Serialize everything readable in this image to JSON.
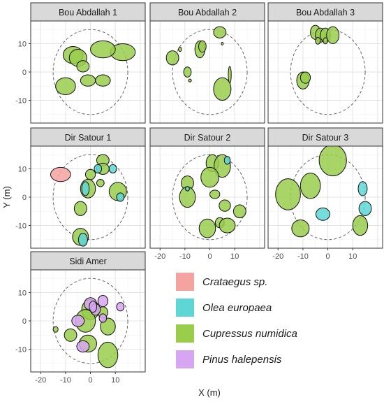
{
  "chart_data": {
    "type": "scatter",
    "xlabel": "X (m)",
    "ylabel": "Y (m)",
    "xlim": [
      -24,
      22
    ],
    "ylim": [
      -18,
      18
    ],
    "x_ticks": [
      -20,
      -10,
      0,
      10
    ],
    "y_ticks": [
      10,
      0,
      -10
    ],
    "grid": true,
    "plot_circle_radius": 15,
    "legend_position": "bottom-right",
    "species": [
      {
        "key": "crataegus",
        "name": "Crataegus sp.",
        "color": "#f4a3a0"
      },
      {
        "key": "olea",
        "name": "Olea europaea",
        "color": "#5ed6d6"
      },
      {
        "key": "cupressus",
        "name": "Cupressus numidica",
        "color": "#9acd4c"
      },
      {
        "key": "pinus",
        "name": "Pinus halepensis",
        "color": "#d7a6f2"
      }
    ],
    "panels": [
      {
        "title": "Bou Abdallah 1",
        "crowns": [
          {
            "s": "cupressus",
            "x": -7,
            "y": 6,
            "rx": 4,
            "ry": 3
          },
          {
            "s": "cupressus",
            "x": -5,
            "y": 5,
            "rx": 3.5,
            "ry": 3
          },
          {
            "s": "cupressus",
            "x": 13,
            "y": 7,
            "rx": 5,
            "ry": 3
          },
          {
            "s": "cupressus",
            "x": 5,
            "y": 8,
            "rx": 5,
            "ry": 3
          },
          {
            "s": "cupressus",
            "x": -3,
            "y": 2,
            "rx": 2.5,
            "ry": 2
          },
          {
            "s": "cupressus",
            "x": -10,
            "y": -5,
            "rx": 4,
            "ry": 3
          },
          {
            "s": "cupressus",
            "x": -1,
            "y": -3,
            "rx": 3,
            "ry": 2
          },
          {
            "s": "cupressus",
            "x": 5,
            "y": -3,
            "rx": 3,
            "ry": 2
          }
        ]
      },
      {
        "title": "Bou Abdallah 2",
        "crowns": [
          {
            "s": "cupressus",
            "x": 4,
            "y": 14,
            "rx": 2.5,
            "ry": 2
          },
          {
            "s": "cupressus",
            "x": -4,
            "y": 8,
            "rx": 2,
            "ry": 3
          },
          {
            "s": "cupressus",
            "x": -3,
            "y": 9,
            "rx": 1.5,
            "ry": 2
          },
          {
            "s": "cupressus",
            "x": -15,
            "y": 5,
            "rx": 2.5,
            "ry": 2.5
          },
          {
            "s": "cupressus",
            "x": -12,
            "y": 8,
            "rx": 0.6,
            "ry": 0.8
          },
          {
            "s": "cupressus",
            "x": -9,
            "y": 0,
            "rx": 1.5,
            "ry": 1.8
          },
          {
            "s": "cupressus",
            "x": -8,
            "y": -3,
            "rx": 0.6,
            "ry": 0.5
          },
          {
            "s": "cupressus",
            "x": 5,
            "y": 10,
            "rx": 0.4,
            "ry": 0.5
          },
          {
            "s": "cupressus",
            "x": 8,
            "y": -1,
            "rx": 0.6,
            "ry": 3
          },
          {
            "s": "cupressus",
            "x": 5,
            "y": -6,
            "rx": 3.5,
            "ry": 4
          }
        ]
      },
      {
        "title": "Bou Abdallah 3",
        "crowns": [
          {
            "s": "cupressus",
            "x": -5,
            "y": 14,
            "rx": 2,
            "ry": 2.5
          },
          {
            "s": "cupressus",
            "x": -3,
            "y": 13,
            "rx": 2,
            "ry": 2.5
          },
          {
            "s": "cupressus",
            "x": -1,
            "y": 13,
            "rx": 2,
            "ry": 2.5
          },
          {
            "s": "cupressus",
            "x": 2,
            "y": 13,
            "rx": 2.5,
            "ry": 3
          },
          {
            "s": "cupressus",
            "x": -4,
            "y": 11,
            "rx": 1,
            "ry": 1.2
          },
          {
            "s": "cupressus",
            "x": -1,
            "y": 11,
            "rx": 0.9,
            "ry": 1.1
          },
          {
            "s": "cupressus",
            "x": -10,
            "y": -3,
            "rx": 2.5,
            "ry": 3
          },
          {
            "s": "cupressus",
            "x": -9,
            "y": -2,
            "rx": 2,
            "ry": 2
          }
        ]
      },
      {
        "title": "Dir Satour 1",
        "crowns": [
          {
            "s": "crataegus",
            "x": -12,
            "y": 8,
            "rx": 4,
            "ry": 2.5
          },
          {
            "s": "cupressus",
            "x": 5,
            "y": 13,
            "rx": 2.5,
            "ry": 2
          },
          {
            "s": "cupressus",
            "x": 5,
            "y": 10,
            "rx": 2.5,
            "ry": 2
          },
          {
            "s": "olea",
            "x": 3,
            "y": 10,
            "rx": 1.5,
            "ry": 1.5
          },
          {
            "s": "olea",
            "x": 9,
            "y": 10,
            "rx": 1.5,
            "ry": 1.5
          },
          {
            "s": "cupressus",
            "x": 0,
            "y": 8,
            "rx": 2,
            "ry": 1.8
          },
          {
            "s": "cupressus",
            "x": 4,
            "y": 5,
            "rx": 1.5,
            "ry": 1.3
          },
          {
            "s": "cupressus",
            "x": -1,
            "y": 3,
            "rx": 3,
            "ry": 3.3
          },
          {
            "s": "olea",
            "x": -2,
            "y": 3,
            "rx": 1.5,
            "ry": 2.5
          },
          {
            "s": "cupressus",
            "x": 11,
            "y": 2,
            "rx": 3.5,
            "ry": 3.2
          },
          {
            "s": "olea",
            "x": 12,
            "y": 0,
            "rx": 1.5,
            "ry": 1.5
          },
          {
            "s": "cupressus",
            "x": -4,
            "y": -4,
            "rx": 2.5,
            "ry": 2.5
          },
          {
            "s": "cupressus",
            "x": -4,
            "y": -14,
            "rx": 3.2,
            "ry": 3
          },
          {
            "s": "olea",
            "x": -3,
            "y": -15,
            "rx": 1.8,
            "ry": 2.3
          }
        ]
      },
      {
        "title": "Dir Satour 2",
        "crowns": [
          {
            "s": "cupressus",
            "x": 1,
            "y": 12,
            "rx": 2.5,
            "ry": 3
          },
          {
            "s": "cupressus",
            "x": 5,
            "y": 11,
            "rx": 3.3,
            "ry": 4
          },
          {
            "s": "olea",
            "x": 7,
            "y": 13,
            "rx": 1.2,
            "ry": 1.4
          },
          {
            "s": "cupressus",
            "x": 0,
            "y": 7,
            "rx": 3.6,
            "ry": 3.5
          },
          {
            "s": "cupressus",
            "x": -9,
            "y": 5,
            "rx": 2.5,
            "ry": 2.5
          },
          {
            "s": "cupressus",
            "x": -9,
            "y": 0,
            "rx": 3.2,
            "ry": 3.6
          },
          {
            "s": "olea",
            "x": -9,
            "y": 3,
            "rx": 0.8,
            "ry": 0.8
          },
          {
            "s": "cupressus",
            "x": 2,
            "y": 1,
            "rx": 2,
            "ry": 1.5
          },
          {
            "s": "cupressus",
            "x": 6,
            "y": -3,
            "rx": 2.3,
            "ry": 2
          },
          {
            "s": "cupressus",
            "x": 12,
            "y": -5,
            "rx": 2.5,
            "ry": 2.3
          },
          {
            "s": "cupressus",
            "x": -1,
            "y": -11,
            "rx": 3.3,
            "ry": 3.3
          },
          {
            "s": "cupressus",
            "x": 4,
            "y": -9,
            "rx": 1.8,
            "ry": 1.8
          },
          {
            "s": "cupressus",
            "x": 7,
            "y": -10,
            "rx": 3.2,
            "ry": 2.6
          }
        ]
      },
      {
        "title": "Dir Satour 3",
        "crowns": [
          {
            "s": "cupressus",
            "x": 2,
            "y": 13,
            "rx": 5.5,
            "ry": 5.5
          },
          {
            "s": "cupressus",
            "x": -16,
            "y": 1,
            "rx": 5,
            "ry": 5.5
          },
          {
            "s": "cupressus",
            "x": -7,
            "y": 4,
            "rx": 4,
            "ry": 4.5
          },
          {
            "s": "cupressus",
            "x": -11,
            "y": -11,
            "rx": 3.5,
            "ry": 3
          },
          {
            "s": "cupressus",
            "x": 13,
            "y": -10,
            "rx": 3,
            "ry": 3.5
          },
          {
            "s": "olea",
            "x": 14,
            "y": 3,
            "rx": 1.8,
            "ry": 2.5
          },
          {
            "s": "olea",
            "x": 15,
            "y": -4,
            "rx": 2.5,
            "ry": 2.5
          },
          {
            "s": "olea",
            "x": -2,
            "y": -6,
            "rx": 2.8,
            "ry": 2.2
          }
        ]
      },
      {
        "title": "Sidi Amer",
        "crowns": [
          {
            "s": "cupressus",
            "x": 0,
            "y": 4,
            "rx": 3.5,
            "ry": 3.5
          },
          {
            "s": "cupressus",
            "x": -2,
            "y": 0,
            "rx": 4,
            "ry": 4
          },
          {
            "s": "cupressus",
            "x": 7,
            "y": -2,
            "rx": 3,
            "ry": 3
          },
          {
            "s": "cupressus",
            "x": -8,
            "y": -5,
            "rx": 2.5,
            "ry": 2.2
          },
          {
            "s": "cupressus",
            "x": -1,
            "y": -8,
            "rx": 3.5,
            "ry": 3
          },
          {
            "s": "cupressus",
            "x": 7,
            "y": -12,
            "rx": 4,
            "ry": 4.5
          },
          {
            "s": "cupressus",
            "x": -14,
            "y": -3,
            "rx": 1,
            "ry": 1
          },
          {
            "s": "cupressus",
            "x": 5,
            "y": 3,
            "rx": 2,
            "ry": 2
          },
          {
            "s": "pinus",
            "x": 0,
            "y": 6,
            "rx": 2.5,
            "ry": 2.2
          },
          {
            "s": "pinus",
            "x": 2,
            "y": 4,
            "rx": 2,
            "ry": 2
          },
          {
            "s": "pinus",
            "x": -5,
            "y": 0,
            "rx": 2.5,
            "ry": 2
          },
          {
            "s": "pinus",
            "x": 5,
            "y": 7,
            "rx": 2,
            "ry": 2
          },
          {
            "s": "pinus",
            "x": 5,
            "y": 1,
            "rx": 1.5,
            "ry": 1.5
          },
          {
            "s": "pinus",
            "x": -3,
            "y": -9,
            "rx": 2.5,
            "ry": 2
          },
          {
            "s": "pinus",
            "x": 12,
            "y": 5,
            "rx": 1.5,
            "ry": 1.5
          },
          {
            "s": "pinus",
            "x": 1,
            "y": 5,
            "rx": 1.5,
            "ry": 2
          }
        ]
      }
    ]
  }
}
